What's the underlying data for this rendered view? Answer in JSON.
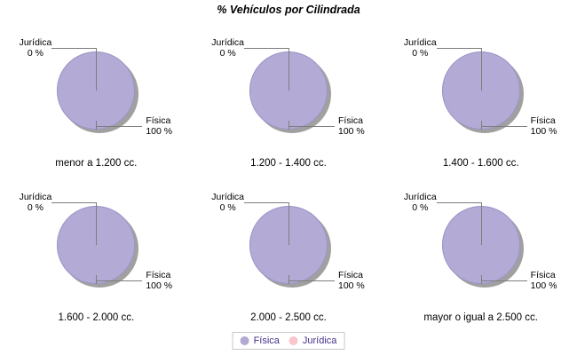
{
  "title": "% Vehículos por Cilindrada",
  "slice_labels": {
    "juridica_name": "Jurídica",
    "juridica_pct": "0 %",
    "fisica_name": "Física",
    "fisica_pct": "100 %"
  },
  "legend": {
    "items": [
      {
        "label": "Física",
        "color": "#b2a8d2"
      },
      {
        "label": "Jurídica",
        "color": "#f8c6cb"
      }
    ],
    "text_color": "#44318c",
    "position": "bottom"
  },
  "chart_data": {
    "type": "pie",
    "title": "% Vehículos por Cilindrada",
    "series_names": [
      "Física",
      "Jurídica"
    ],
    "colors": {
      "fisica": "#b4aad6",
      "juridica": "#f8c6cb"
    },
    "legend_position": "bottom",
    "layout": "2 rows x 3 columns of pies",
    "pies": [
      {
        "category": "menor a 1.200 cc.",
        "values": {
          "Física": 100,
          "Jurídica": 0
        }
      },
      {
        "category": "1.200 - 1.400 cc.",
        "values": {
          "Física": 100,
          "Jurídica": 0
        }
      },
      {
        "category": "1.400 - 1.600 cc.",
        "values": {
          "Física": 100,
          "Jurídica": 0
        }
      },
      {
        "category": "1.600 - 2.000 cc.",
        "values": {
          "Física": 100,
          "Jurídica": 0
        }
      },
      {
        "category": "2.000 - 2.500 cc.",
        "values": {
          "Física": 100,
          "Jurídica": 0
        }
      },
      {
        "category": "mayor o igual a 2.500 cc.",
        "values": {
          "Física": 100,
          "Jurídica": 0
        }
      }
    ]
  }
}
